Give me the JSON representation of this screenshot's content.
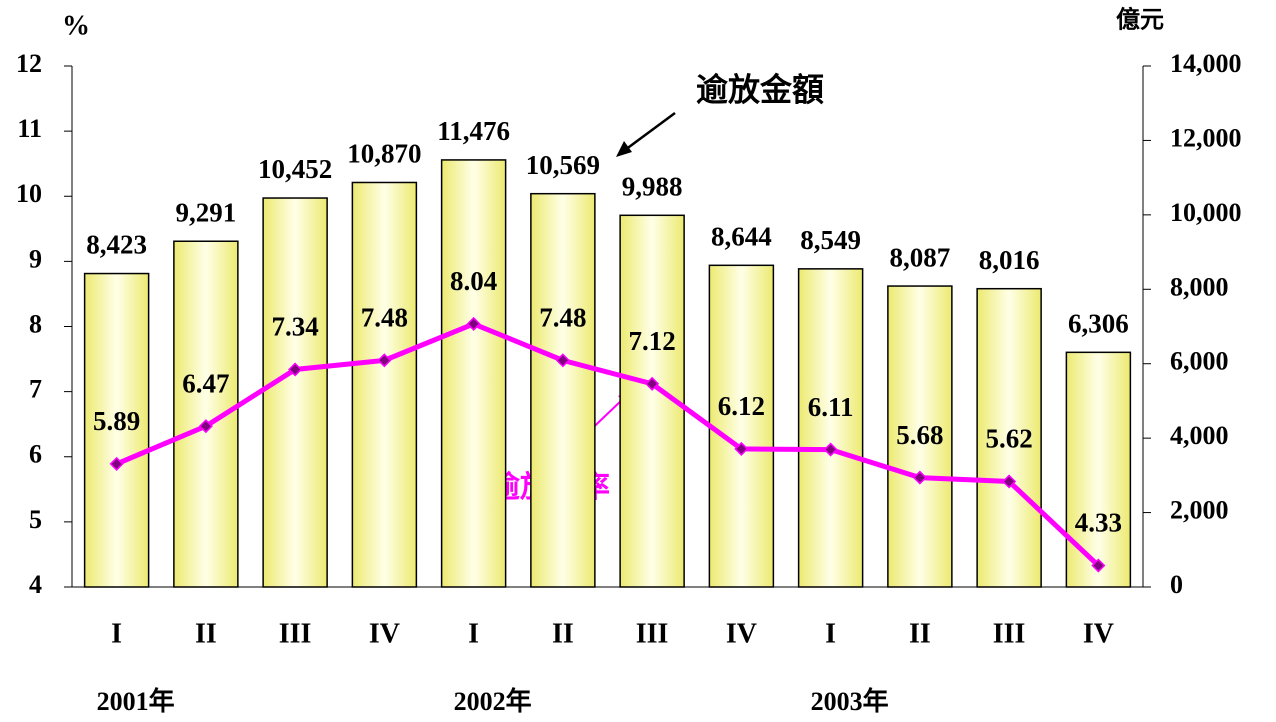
{
  "chart_data": {
    "type": "bar_line",
    "categories": [
      "I",
      "II",
      "III",
      "IV",
      "I",
      "II",
      "III",
      "IV",
      "I",
      "II",
      "III",
      "IV"
    ],
    "year_labels": [
      "2001年",
      "2002年",
      "2003年"
    ],
    "y_label": "%",
    "y2_label": "億元",
    "ylim": [
      4,
      12
    ],
    "yticks": [
      4,
      5,
      6,
      7,
      8,
      9,
      10,
      11,
      12
    ],
    "y2lim": [
      0,
      14000
    ],
    "y2ticks": [
      0,
      {
        "value": 2000,
        "label": "2,000"
      },
      {
        "value": 4000,
        "label": "4,000"
      },
      {
        "value": 6000,
        "label": "6,000"
      },
      {
        "value": 8000,
        "label": "8,000"
      },
      {
        "value": 10000,
        "label": "10,000"
      },
      {
        "value": 12000,
        "label": "12,000"
      },
      {
        "value": 14000,
        "label": "14,000"
      }
    ],
    "series": [
      {
        "name": "逾放金額",
        "type": "bar",
        "axis": "y2",
        "color": "#f5f28a",
        "values": [
          8423,
          9291,
          10452,
          10870,
          11476,
          10569,
          9988,
          8644,
          8549,
          8087,
          8016,
          6306
        ],
        "value_labels": [
          "8,423",
          "9,291",
          "10,452",
          "10,870",
          "11,476",
          "10,569",
          "9,988",
          "8,644",
          "8,549",
          "8,087",
          "8,016",
          "6,306"
        ]
      },
      {
        "name": "逾放比率",
        "type": "line",
        "axis": "y",
        "color": "#ff00ff",
        "values": [
          5.89,
          6.47,
          7.34,
          7.48,
          8.04,
          7.48,
          7.12,
          6.12,
          6.11,
          5.68,
          5.62,
          4.33
        ]
      }
    ]
  }
}
